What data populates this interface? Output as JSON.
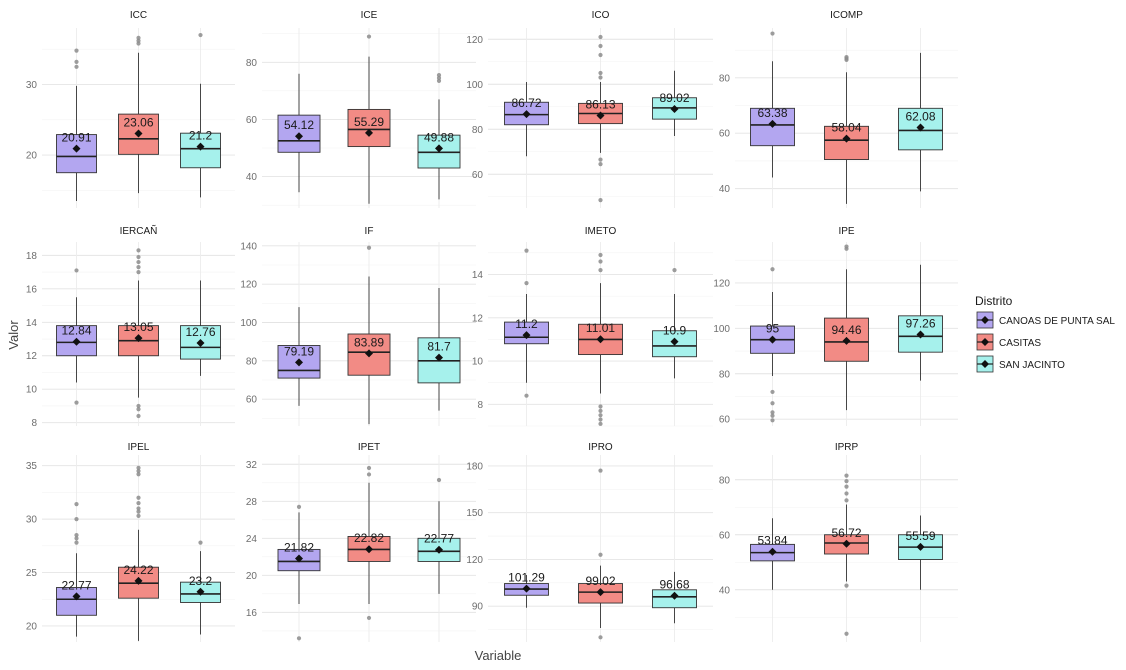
{
  "chart_data": {
    "type": "boxplot",
    "xlabel": "Variable",
    "ylabel": "Valor",
    "legend": {
      "title": "Distrito",
      "placement": "right",
      "entries": [
        "CANOAS DE PUNTA SAL",
        "CASITAS",
        "SAN JACINTO"
      ]
    },
    "colors": {
      "CANOAS DE PUNTA SAL": "#b3a6f0",
      "CASITAS": "#f28b85",
      "SAN JACINTO": "#a6f1ec"
    },
    "grid": true,
    "panels": [
      {
        "title": "ICC",
        "ylim": [
          12.5,
          38
        ],
        "ticks": [
          20,
          30
        ],
        "series": [
          {
            "min": 13.5,
            "q1": 17.5,
            "median": 19.8,
            "q3": 22.9,
            "max": 29.8,
            "mean": 20.91,
            "label": "20.91",
            "outliers": [
              32.5,
              33.2,
              34.8
            ]
          },
          {
            "min": 14.6,
            "q1": 20.1,
            "median": 22.3,
            "q3": 25.8,
            "max": 34.5,
            "mean": 23.06,
            "label": "23.06",
            "outliers": [
              35.8,
              36.2,
              36.6
            ]
          },
          {
            "min": 14.0,
            "q1": 18.2,
            "median": 20.9,
            "q3": 23.1,
            "max": 30.1,
            "mean": 21.2,
            "label": "21.2",
            "outliers": [
              37.0
            ]
          }
        ]
      },
      {
        "title": "ICE",
        "ylim": [
          29,
          92
        ],
        "ticks": [
          40,
          60,
          80
        ],
        "series": [
          {
            "min": 34.5,
            "q1": 48.5,
            "median": 52.5,
            "q3": 61.5,
            "max": 76.0,
            "mean": 54.12,
            "label": "54.12",
            "outliers": []
          },
          {
            "min": 30.5,
            "q1": 50.5,
            "median": 56.5,
            "q3": 63.5,
            "max": 82.0,
            "mean": 55.29,
            "label": "55.29",
            "outliers": [
              89.0
            ]
          },
          {
            "min": 32.0,
            "q1": 43.0,
            "median": 48.5,
            "q3": 54.5,
            "max": 67.0,
            "mean": 49.88,
            "label": "49.88",
            "outliers": [
              73.5,
              74.5,
              75.5
            ]
          }
        ]
      },
      {
        "title": "ICO",
        "ylim": [
          45,
          125
        ],
        "ticks": [
          60,
          80,
          100,
          120
        ],
        "series": [
          {
            "min": 68.0,
            "q1": 82.0,
            "median": 86.5,
            "q3": 92.0,
            "max": 101.0,
            "mean": 86.72,
            "label": "86.72",
            "outliers": []
          },
          {
            "min": 69.5,
            "q1": 82.5,
            "median": 87.0,
            "q3": 91.5,
            "max": 101.0,
            "mean": 86.13,
            "label": "86.13",
            "outliers": [
              48.5,
              64.5,
              66.5,
              103.0,
              105.0,
              113.0,
              117.0,
              121.0
            ]
          },
          {
            "min": 77.0,
            "q1": 84.5,
            "median": 89.5,
            "q3": 94.0,
            "max": 106.0,
            "mean": 89.02,
            "label": "89.02",
            "outliers": []
          }
        ]
      },
      {
        "title": "ICOMP",
        "ylim": [
          33,
          98
        ],
        "ticks": [
          40,
          60,
          80
        ],
        "series": [
          {
            "min": 44.0,
            "q1": 55.5,
            "median": 63.0,
            "q3": 69.0,
            "max": 86.0,
            "mean": 63.38,
            "label": "63.38",
            "outliers": [
              96.0
            ]
          },
          {
            "min": 34.5,
            "q1": 50.5,
            "median": 57.5,
            "q3": 62.5,
            "max": 82.0,
            "mean": 58.04,
            "label": "58.04",
            "outliers": [
              86.5,
              87.0,
              87.5
            ]
          },
          {
            "min": 39.0,
            "q1": 54.0,
            "median": 61.0,
            "q3": 69.0,
            "max": 89.0,
            "mean": 62.08,
            "label": "62.08",
            "outliers": []
          }
        ]
      },
      {
        "title": "IERCAÑ",
        "ylim": [
          7.8,
          18.8
        ],
        "ticks": [
          8,
          10,
          12,
          14,
          16,
          18
        ],
        "series": [
          {
            "min": 10.4,
            "q1": 12.0,
            "median": 12.8,
            "q3": 13.8,
            "max": 15.5,
            "mean": 12.84,
            "label": "12.84",
            "outliers": [
              9.2,
              17.1
            ]
          },
          {
            "min": 9.5,
            "q1": 12.0,
            "median": 12.9,
            "q3": 13.8,
            "max": 16.5,
            "mean": 13.05,
            "label": "13.05",
            "outliers": [
              8.4,
              8.8,
              9.0,
              17.0,
              17.3,
              17.6,
              17.9,
              18.3
            ]
          },
          {
            "min": 10.8,
            "q1": 11.8,
            "median": 12.5,
            "q3": 13.8,
            "max": 16.5,
            "mean": 12.76,
            "label": "12.76",
            "outliers": []
          }
        ]
      },
      {
        "title": "IF",
        "ylim": [
          46,
          142
        ],
        "ticks": [
          60,
          80,
          100,
          120,
          140
        ],
        "series": [
          {
            "min": 56.5,
            "q1": 71.0,
            "median": 75.0,
            "q3": 88.0,
            "max": 108.0,
            "mean": 79.19,
            "label": "79.19",
            "outliers": []
          },
          {
            "min": 47.0,
            "q1": 72.5,
            "median": 84.5,
            "q3": 94.0,
            "max": 124.0,
            "mean": 83.89,
            "label": "83.89",
            "outliers": [
              139.0
            ]
          },
          {
            "min": 54.0,
            "q1": 68.5,
            "median": 80.0,
            "q3": 92.0,
            "max": 118.0,
            "mean": 81.7,
            "label": "81.7",
            "outliers": []
          }
        ]
      },
      {
        "title": "IMETO",
        "ylim": [
          7,
          15.5
        ],
        "ticks": [
          8,
          10,
          12,
          14
        ],
        "series": [
          {
            "min": 9.0,
            "q1": 10.8,
            "median": 11.1,
            "q3": 11.8,
            "max": 13.1,
            "mean": 11.2,
            "label": "11.2",
            "outliers": [
              8.4,
              13.6,
              15.1
            ]
          },
          {
            "min": 8.5,
            "q1": 10.3,
            "median": 11.0,
            "q3": 11.7,
            "max": 13.6,
            "mean": 11.01,
            "label": "11.01",
            "outliers": [
              7.1,
              7.3,
              7.5,
              7.7,
              7.9,
              14.2,
              14.6,
              14.9
            ]
          },
          {
            "min": 9.2,
            "q1": 10.2,
            "median": 10.7,
            "q3": 11.4,
            "max": 13.1,
            "mean": 10.9,
            "label": "10.9",
            "outliers": [
              14.2
            ]
          }
        ]
      },
      {
        "title": "IPE",
        "ylim": [
          57,
          138
        ],
        "ticks": [
          60,
          80,
          100,
          120
        ],
        "series": [
          {
            "min": 79.0,
            "q1": 89.0,
            "median": 95.0,
            "q3": 101.0,
            "max": 116.0,
            "mean": 95.0,
            "label": "95",
            "outliers": [
              59.5,
              61.5,
              63.0,
              67.0,
              72.0,
              126.0
            ]
          },
          {
            "min": 64.0,
            "q1": 85.5,
            "median": 94.0,
            "q3": 104.5,
            "max": 126.0,
            "mean": 94.46,
            "label": "94.46",
            "outliers": [
              135.0,
              136.0
            ]
          },
          {
            "min": 77.0,
            "q1": 89.5,
            "median": 96.5,
            "q3": 105.5,
            "max": 128.0,
            "mean": 97.26,
            "label": "97.26",
            "outliers": []
          }
        ]
      },
      {
        "title": "IPEL",
        "ylim": [
          18.5,
          36
        ],
        "ticks": [
          20,
          25,
          30,
          35
        ],
        "series": [
          {
            "min": 19.0,
            "q1": 21.0,
            "median": 22.5,
            "q3": 23.6,
            "max": 26.8,
            "mean": 22.77,
            "label": "22.77",
            "outliers": [
              27.8,
              28.2,
              28.5,
              30.0,
              31.4
            ]
          },
          {
            "min": 18.6,
            "q1": 22.6,
            "median": 24.0,
            "q3": 25.5,
            "max": 29.0,
            "mean": 24.22,
            "label": "24.22",
            "outliers": [
              30.3,
              30.7,
              31.0,
              31.5,
              32.0,
              34.2,
              34.5,
              34.8
            ]
          },
          {
            "min": 19.2,
            "q1": 22.2,
            "median": 23.0,
            "q3": 24.1,
            "max": 27.0,
            "mean": 23.2,
            "label": "23.2",
            "outliers": [
              27.8
            ]
          }
        ]
      },
      {
        "title": "IPET",
        "ylim": [
          12.8,
          33
        ],
        "ticks": [
          16,
          20,
          24,
          28,
          32
        ],
        "series": [
          {
            "min": 16.9,
            "q1": 20.5,
            "median": 21.5,
            "q3": 22.8,
            "max": 26.8,
            "mean": 21.82,
            "label": "21.82",
            "outliers": [
              13.2,
              27.4
            ]
          },
          {
            "min": 16.9,
            "q1": 21.5,
            "median": 22.8,
            "q3": 24.2,
            "max": 30.0,
            "mean": 22.82,
            "label": "22.82",
            "outliers": [
              15.4,
              30.9,
              31.6
            ]
          },
          {
            "min": 18.0,
            "q1": 21.5,
            "median": 22.6,
            "q3": 24.0,
            "max": 28.0,
            "mean": 22.77,
            "label": "22.77",
            "outliers": [
              30.3
            ]
          }
        ]
      },
      {
        "title": "IPRO",
        "ylim": [
          67,
          187
        ],
        "ticks": [
          90,
          120,
          150,
          180
        ],
        "series": [
          {
            "min": 89.0,
            "q1": 97.0,
            "median": 101.0,
            "q3": 104.5,
            "max": 110.0,
            "mean": 101.29,
            "label": "101.29",
            "outliers": []
          },
          {
            "min": 76.0,
            "q1": 92.0,
            "median": 99.0,
            "q3": 104.5,
            "max": 116.0,
            "mean": 99.02,
            "label": "99.02",
            "outliers": [
              70.0,
              123.0,
              177.0
            ]
          },
          {
            "min": 79.0,
            "q1": 89.0,
            "median": 96.0,
            "q3": 100.5,
            "max": 112.0,
            "mean": 96.68,
            "label": "96.68",
            "outliers": []
          }
        ]
      },
      {
        "title": "IPRP",
        "ylim": [
          21,
          89
        ],
        "ticks": [
          40,
          60,
          80
        ],
        "series": [
          {
            "min": 40.0,
            "q1": 50.5,
            "median": 53.5,
            "q3": 56.5,
            "max": 66.0,
            "mean": 53.84,
            "label": "53.84",
            "outliers": []
          },
          {
            "min": 43.0,
            "q1": 53.0,
            "median": 57.0,
            "q3": 60.0,
            "max": 71.0,
            "mean": 56.72,
            "label": "56.72",
            "outliers": [
              24.0,
              41.5,
              72.5,
              75.0,
              77.5,
              79.5,
              81.5
            ]
          },
          {
            "min": 40.0,
            "q1": 51.0,
            "median": 55.5,
            "q3": 60.0,
            "max": 67.0,
            "mean": 55.59,
            "label": "55.59",
            "outliers": []
          }
        ]
      }
    ]
  }
}
